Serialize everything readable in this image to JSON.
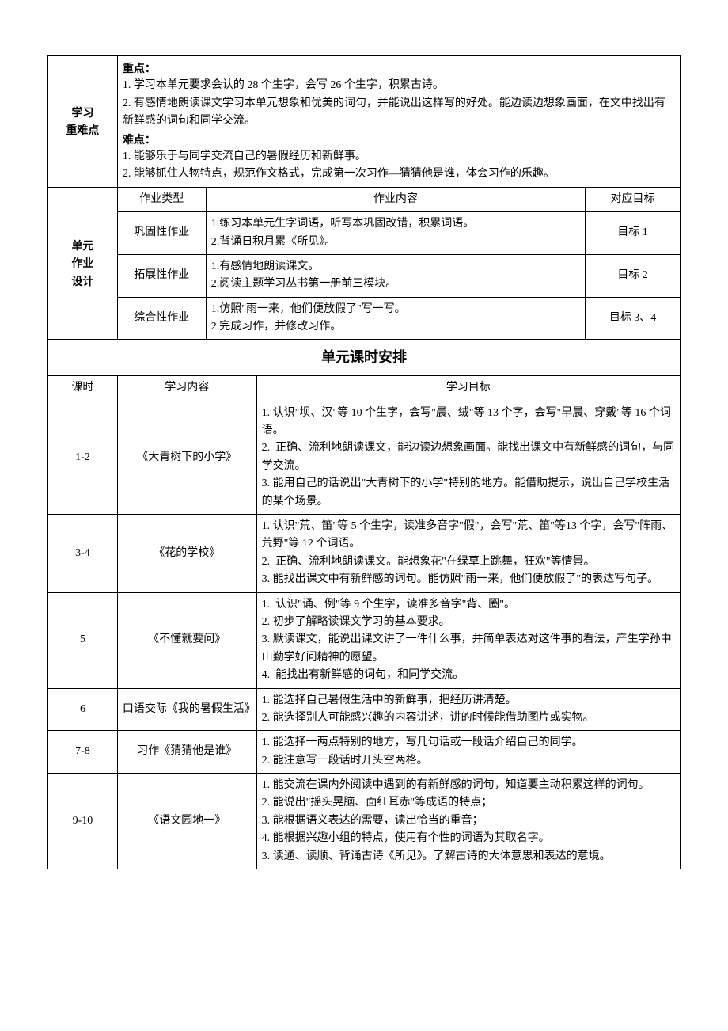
{
  "difficulties": {
    "label": "学习\n重难点",
    "key_label": "重点：",
    "key_points": [
      "1. 学习本单元要求会认的 28 个生字，会写 26 个生字，积累古诗。",
      "2. 有感情地朗读课文学习本单元想象和优美的词句，并能说出这样写的好处。能边读边想象画面，在文中找出有新鲜感的词句和同学交流。"
    ],
    "hard_label": "难点：",
    "hard_points": [
      "1. 能够乐于与同学交流自己的暑假经历和新鲜事。",
      "2. 能够抓住人物特点，规范作文格式，完成第一次习作—猜猜他是谁，体会习作的乐趣。"
    ]
  },
  "homework": {
    "label": "单元\n作业\n设计",
    "headers": {
      "type": "作业类型",
      "content": "作业内容",
      "target": "对应目标"
    },
    "rows": [
      {
        "type": "巩固性作业",
        "content": "1.练习本单元生字词语，听写本巩固改错，积累词语。\n2.背诵日积月累《所见》。",
        "target": "目标 1"
      },
      {
        "type": "拓展性作业",
        "content": "1.有感情地朗读课文。\n2.阅读主题学习丛书第一册前三模块。",
        "target": "目标 2"
      },
      {
        "type": "综合性作业",
        "content": "1.仿照\"雨一来，他们便放假了\"写一写。\n2.完成习作，并修改习作。",
        "target": "目标 3、4"
      }
    ]
  },
  "schedule_title": "单元课时安排",
  "schedule": {
    "headers": {
      "period": "课时",
      "content": "学习内容",
      "goal": "学习目标"
    },
    "rows": [
      {
        "period": "1-2",
        "content": "《大青树下的小学》",
        "goal": "1. 认识\"坝、汉\"等 10 个生字，会写\"晨、绒\"等 13 个字，会写\"早晨、穿戴\"等 16 个词语。\n2.  正确、流利地朗读课文，能边读边想象画面。能找出课文中有新鲜感的词句，与同学交流。\n3. 能用自己的话说出\"大青树下的小学\"特别的地方。能借助提示，说出自己学校生活的某个场景。"
      },
      {
        "period": "3-4",
        "content": "《花的学校》",
        "goal": "1. 认识\"荒、笛\"等 5 个生字，读准多音字\"假\"，会写\"荒、笛\"等13 个字，会写\"阵雨、荒野\"等 12 个词语。\n2.  正确、流利地朗读课文。能想象花\"在绿草上跳舞，狂欢\"等情景。\n3. 能找出课文中有新鲜感的词句。能仿照\"雨一来，他们便放假了\"的表达写句子。"
      },
      {
        "period": "5",
        "content": "《不懂就要问》",
        "goal": "1.  认识\"诵、例\"等 9 个生字，读准多音字\"背、圈\"。\n2. 初步了解略读课文学习的基本要求。\n3. 默读课文，能说出课文讲了一件什么事，并简单表达对这件事的看法，产生学孙中山勤学好问精神的愿望。\n4.  能找出有新鲜感的词句，和同学交流。"
      },
      {
        "period": "6",
        "content": "口语交际《我的暑假生活》",
        "goal": "1. 能选择自己暑假生活中的新鲜事，把经历讲清楚。\n2. 能选择别人可能感兴趣的内容讲述，讲的时候能借助图片或实物。"
      },
      {
        "period": "7-8",
        "content": "习作《猜猜他是谁》",
        "goal": "1. 能选择一两点特别的地方，写几句话或一段话介绍自己的同学。\n2. 能注意写一段话时开头空两格。"
      },
      {
        "period": "9-10",
        "content": "《语文园地一》",
        "goal": "1. 能交流在课内外阅读中遇到的有新鲜感的词句，知道要主动积累这样的词句。\n2. 能说出\"摇头晃脑、面红耳赤\"等成语的特点；\n3. 能根据语义表达的需要，读出恰当的重音；\n4. 能根据兴趣小组的特点，使用有个性的词语为其取名字。\n3. 读通、读顺、背诵古诗《所见》。了解古诗的大体意思和表达的意境。"
      }
    ]
  },
  "styles": {
    "font_family": "SimSun",
    "heading_font": "SimHei",
    "font_size_body": 14,
    "font_size_title": 18,
    "border_color": "#000000",
    "background_color": "#ffffff",
    "text_color": "#000000"
  }
}
